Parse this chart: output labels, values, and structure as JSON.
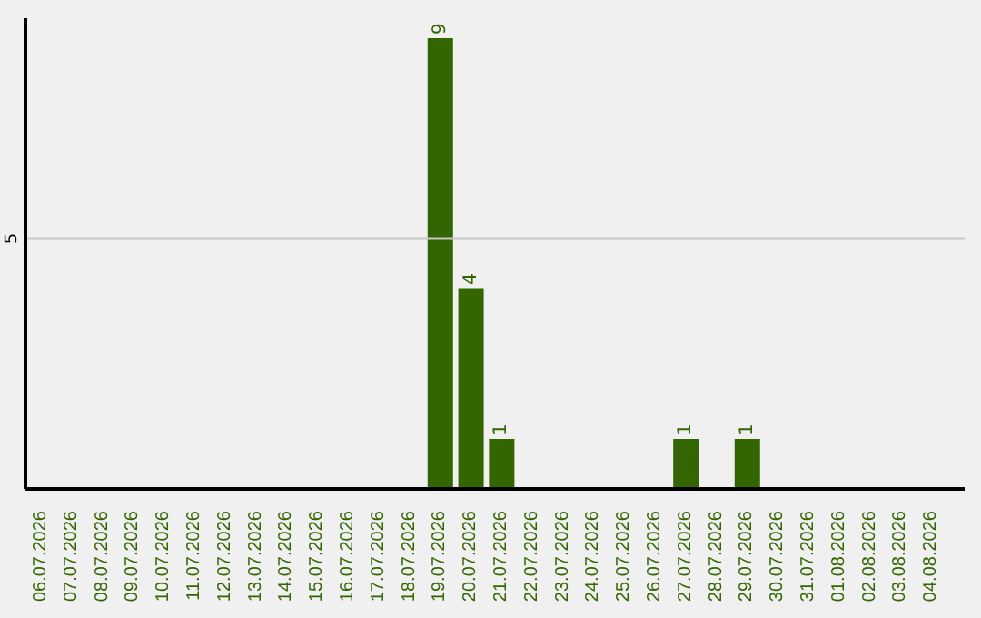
{
  "chart_data": {
    "type": "bar",
    "categories": [
      "06.07.2026",
      "07.07.2026",
      "08.07.2026",
      "09.07.2026",
      "10.07.2026",
      "11.07.2026",
      "12.07.2026",
      "13.07.2026",
      "14.07.2026",
      "15.07.2026",
      "16.07.2026",
      "17.07.2026",
      "18.07.2026",
      "19.07.2026",
      "20.07.2026",
      "21.07.2026",
      "22.07.2026",
      "23.07.2026",
      "24.07.2026",
      "25.07.2026",
      "26.07.2026",
      "27.07.2026",
      "28.07.2026",
      "29.07.2026",
      "30.07.2026",
      "31.07.2026",
      "01.08.2026",
      "02.08.2026",
      "03.08.2026",
      "04.08.2026"
    ],
    "values": [
      null,
      null,
      null,
      null,
      null,
      null,
      null,
      null,
      null,
      null,
      null,
      null,
      null,
      9,
      4,
      1,
      null,
      null,
      null,
      null,
      null,
      1,
      null,
      1,
      null,
      null,
      null,
      null,
      null,
      null
    ],
    "data_labels": true,
    "ylim": [
      0,
      9.4
    ],
    "color": "#336600",
    "ref_lines": [
      {
        "axis": "y",
        "value": 5,
        "label": "5",
        "color": "#c8c8c8"
      }
    ],
    "legend": false
  }
}
